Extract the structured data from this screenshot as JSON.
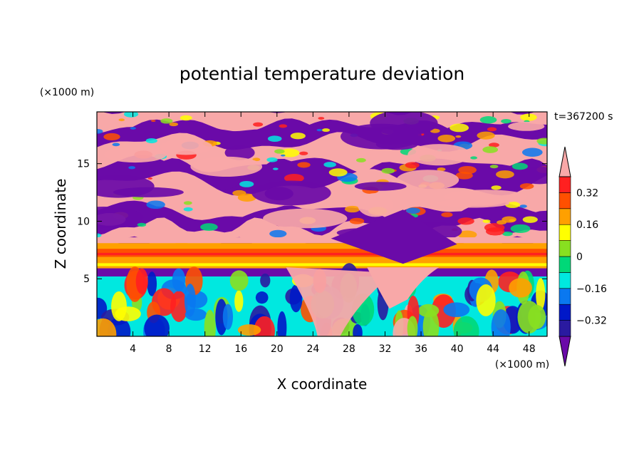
{
  "chart_data": {
    "type": "heatmap",
    "title": "potential temperature deviation",
    "xlabel": "X coordinate",
    "ylabel": "Z coordinate",
    "x_unit": "(×1000 m)",
    "y_unit": "(×1000 m)",
    "time_label": "t=367200 s",
    "xlim": [
      0,
      50
    ],
    "ylim": [
      0,
      19.5
    ],
    "x_ticks": [
      4,
      8,
      12,
      16,
      20,
      24,
      28,
      32,
      36,
      40,
      44,
      48
    ],
    "y_ticks": [
      5,
      10,
      15
    ],
    "grid": false,
    "colorbar": {
      "placement": "right",
      "labels": [
        "0.32",
        "0.16",
        "0",
        "−0.16",
        "−0.32"
      ],
      "label_values": [
        0.32,
        0.16,
        0,
        -0.16,
        -0.32
      ],
      "levels": [
        -0.4,
        -0.32,
        -0.24,
        -0.16,
        -0.08,
        0,
        0.08,
        0.16,
        0.24,
        0.32,
        0.4
      ],
      "colors": [
        "#6a0aa8",
        "#2a1aa0",
        "#0018c8",
        "#0a78f0",
        "#00e8e0",
        "#00d878",
        "#88e020",
        "#ffff00",
        "#ffa000",
        "#ff5000",
        "#ff2020",
        "#f8a8a8"
      ],
      "extend": "both"
    },
    "regions": [
      {
        "band": "upper troposphere z 10–19.5",
        "pattern": "alternating warm (>0.4) and cold (<-0.4) layers"
      },
      {
        "band": "z 6–8",
        "pattern": "warm band around +0.24 to +0.4"
      },
      {
        "band": "z 0–5",
        "pattern": "turbulent mixed anomalies from -0.4 to +0.4"
      }
    ]
  }
}
